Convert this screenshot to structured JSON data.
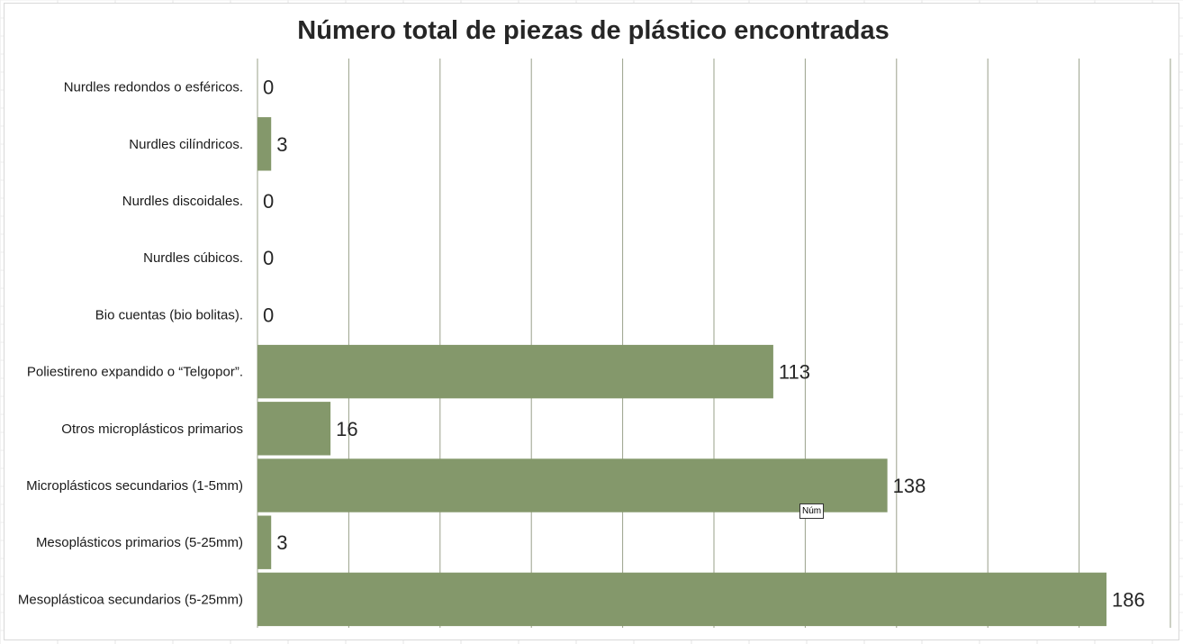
{
  "chart_data": {
    "type": "bar",
    "orientation": "horizontal",
    "title": "Número total de piezas de plástico encontradas",
    "categories": [
      "Nurdles redondos o esféricos.",
      "Nurdles cilíndricos.",
      "Nurdles discoidales.",
      "Nurdles cúbicos.",
      "Bio cuentas (bio bolitas).",
      "Poliestireno expandido o “Telgopor”.",
      "Otros  microplásticos primarios",
      "Microplásticos secundarios (1-5mm)",
      "Mesoplásticos primarios (5-25mm)",
      "Mesoplásticoa secundarios (5-25mm)"
    ],
    "values": [
      0,
      3,
      0,
      0,
      0,
      113,
      16,
      138,
      3,
      186
    ],
    "data_labels": [
      "0",
      "3",
      "0",
      "0",
      "0",
      "113",
      "16",
      "138",
      "3",
      "186"
    ],
    "xlim": [
      0,
      200
    ],
    "x_gridline_step": 20,
    "grid": true,
    "legend": "none",
    "bar_color": "#84986b",
    "gridline_color": "#9aa08a"
  },
  "tooltip": {
    "text": "Núm"
  }
}
